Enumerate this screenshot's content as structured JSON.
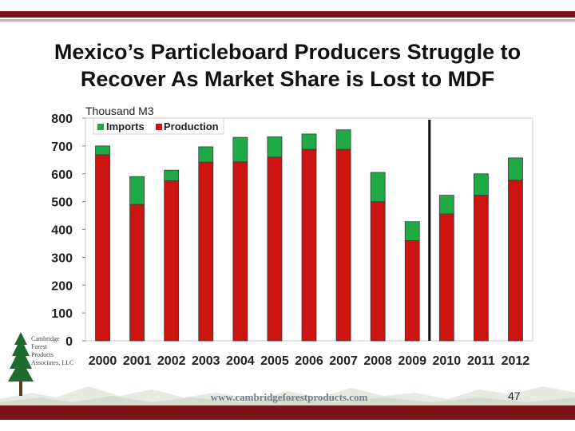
{
  "slide": {
    "title_line1": "Mexico’s Particleboard Producers Struggle to",
    "title_line2": "Recover As Market Share is Lost to MDF",
    "page_number": "47",
    "footer_url": "www.cambridgeforestproducts.com",
    "logo_lines": [
      "Cambridge",
      "Forest",
      "Products",
      "Associates, LLC"
    ]
  },
  "colors": {
    "accent_bar": "#7a1318",
    "imports": "#1faa45",
    "production": "#cc1411",
    "divider": "#111111"
  },
  "chart_data": {
    "type": "bar",
    "stacked": true,
    "title": "",
    "unit_label": "Thousand M3",
    "xlabel": "",
    "ylabel": "",
    "ylim": [
      0,
      800
    ],
    "yticks": [
      0,
      100,
      200,
      300,
      400,
      500,
      600,
      700,
      800
    ],
    "categories": [
      "2000",
      "2001",
      "2002",
      "2003",
      "2004",
      "2005",
      "2006",
      "2007",
      "2008",
      "2009",
      "2010",
      "2011",
      "2012"
    ],
    "series": [
      {
        "name": "Production",
        "color": "#cc1411",
        "values": [
          668,
          490,
          575,
          642,
          643,
          660,
          688,
          688,
          500,
          360,
          456,
          523,
          577
        ]
      },
      {
        "name": "Imports",
        "color": "#1faa45",
        "values": [
          32,
          100,
          38,
          55,
          88,
          73,
          55,
          70,
          105,
          68,
          67,
          77,
          80
        ]
      }
    ],
    "legend": {
      "position": "top-left",
      "entries": [
        "Imports",
        "Production"
      ]
    },
    "annotations": [
      {
        "type": "vertical-line",
        "between": [
          "2009",
          "2010"
        ]
      }
    ],
    "grid": false
  }
}
